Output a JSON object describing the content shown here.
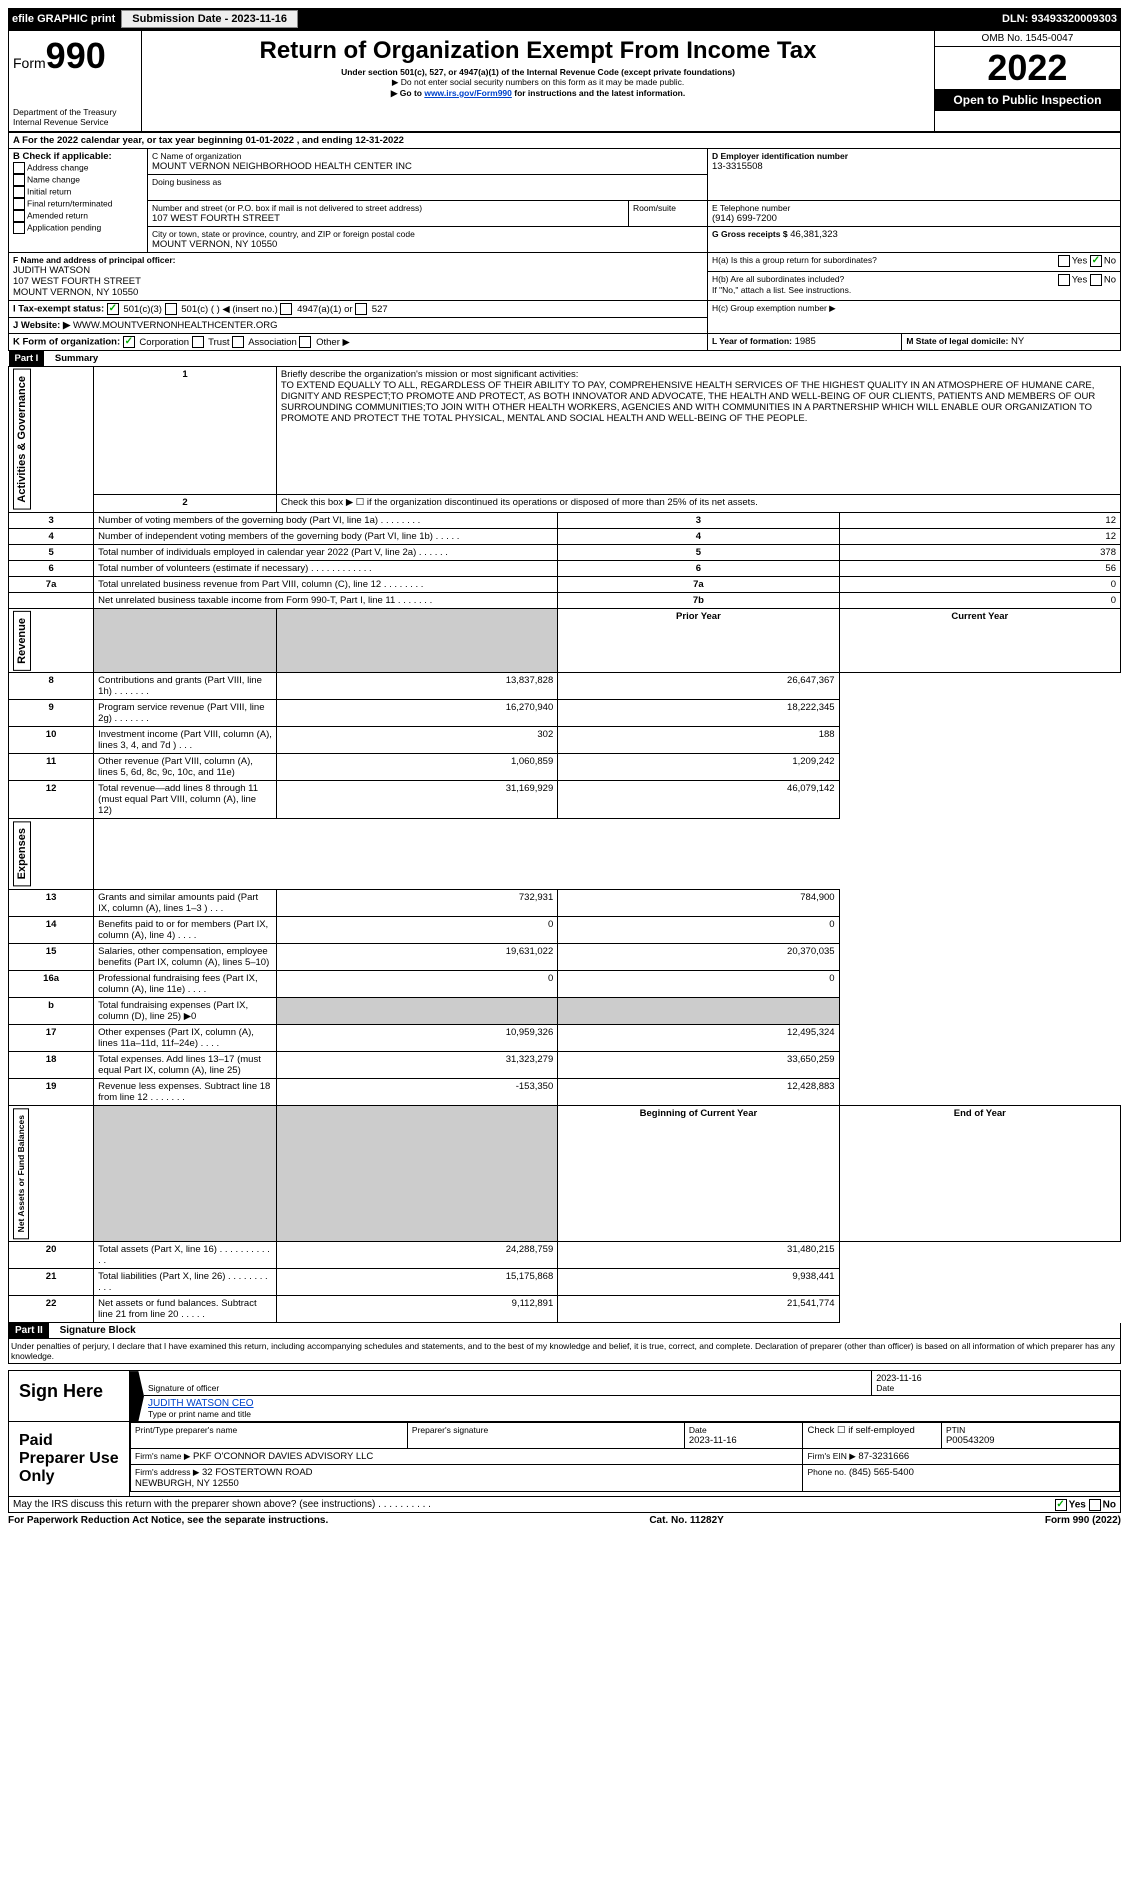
{
  "topbar": {
    "efile": "efile GRAPHIC print",
    "submission_btn": "Submission Date - 2023-11-16",
    "dln": "DLN: 93493320009303"
  },
  "header": {
    "form_prefix": "Form",
    "form_num": "990",
    "title": "Return of Organization Exempt From Income Tax",
    "subtitle": "Under section 501(c), 527, or 4947(a)(1) of the Internal Revenue Code (except private foundations)",
    "note1": "▶ Do not enter social security numbers on this form as it may be made public.",
    "note2_pre": "▶ Go to ",
    "note2_link": "www.irs.gov/Form990",
    "note2_post": " for instructions and the latest information.",
    "dept": "Department of the Treasury\nInternal Revenue Service",
    "omb": "OMB No. 1545-0047",
    "year": "2022",
    "open": "Open to Public Inspection"
  },
  "A": {
    "line": "A For the 2022 calendar year, or tax year beginning 01-01-2022  , and ending 12-31-2022"
  },
  "B": {
    "header": "B Check if applicable:",
    "opts": [
      "Address change",
      "Name change",
      "Initial return",
      "Final return/terminated",
      "Amended return",
      "Application pending"
    ]
  },
  "C": {
    "label": "C Name of organization",
    "name": "MOUNT VERNON NEIGHBORHOOD HEALTH CENTER INC",
    "dba_label": "Doing business as",
    "street_label": "Number and street (or P.O. box if mail is not delivered to street address)",
    "room_label": "Room/suite",
    "street": "107 WEST FOURTH STREET",
    "city_label": "City or town, state or province, country, and ZIP or foreign postal code",
    "city": "MOUNT VERNON, NY  10550"
  },
  "D": {
    "label": "D Employer identification number",
    "value": "13-3315508"
  },
  "E": {
    "label": "E Telephone number",
    "value": "(914) 699-7200"
  },
  "G": {
    "label": "G Gross receipts $",
    "value": "46,381,323"
  },
  "F": {
    "label": "F  Name and address of principal officer:",
    "name": "JUDITH WATSON",
    "addr1": "107 WEST FOURTH STREET",
    "addr2": "MOUNT VERNON, NY  10550"
  },
  "H": {
    "a": "H(a)  Is this a group return for subordinates?",
    "b": "H(b)  Are all subordinates included?",
    "b_note": "If \"No,\" attach a list. See instructions.",
    "c": "H(c)  Group exemption number ▶",
    "yes": "Yes",
    "no": "No"
  },
  "I": {
    "label": "I  Tax-exempt status:",
    "opts": [
      "501(c)(3)",
      "501(c) (  ) ◀ (insert no.)",
      "4947(a)(1) or",
      "527"
    ]
  },
  "J": {
    "label": "J  Website: ▶",
    "value": "WWW.MOUNTVERNONHEALTHCENTER.ORG"
  },
  "K": {
    "label": "K Form of organization:",
    "opts": [
      "Corporation",
      "Trust",
      "Association",
      "Other ▶"
    ]
  },
  "L": {
    "label": "L Year of formation:",
    "value": "1985"
  },
  "M": {
    "label": "M State of legal domicile:",
    "value": "NY"
  },
  "part1": {
    "label": "Part I",
    "title": "Summary",
    "line1_label": "Briefly describe the organization's mission or most significant activities:",
    "mission": "TO EXTEND EQUALLY TO ALL, REGARDLESS OF THEIR ABILITY TO PAY, COMPREHENSIVE HEALTH SERVICES OF THE HIGHEST QUALITY IN AN ATMOSPHERE OF HUMANE CARE, DIGNITY AND RESPECT;TO PROMOTE AND PROTECT, AS BOTH INNOVATOR AND ADVOCATE, THE HEALTH AND WELL-BEING OF OUR CLIENTS, PATIENTS AND MEMBERS OF OUR SURROUNDING COMMUNITIES;TO JOIN WITH OTHER HEALTH WORKERS, AGENCIES AND WITH COMMUNITIES IN A PARTNERSHIP WHICH WILL ENABLE OUR ORGANIZATION TO PROMOTE AND PROTECT THE TOTAL PHYSICAL, MENTAL AND SOCIAL HEALTH AND WELL-BEING OF THE PEOPLE.",
    "line2": "Check this box ▶ ☐ if the organization discontinued its operations or disposed of more than 25% of its net assets.",
    "vert_ag": "Activities & Governance",
    "vert_rev": "Revenue",
    "vert_exp": "Expenses",
    "vert_na": "Net Assets or Fund Balances",
    "rows_ag": [
      {
        "n": "3",
        "t": "Number of voting members of the governing body (Part VI, line 1a)  .   .   .   .   .   .   .   .",
        "c": "3",
        "v": "12"
      },
      {
        "n": "4",
        "t": "Number of independent voting members of the governing body (Part VI, line 1b)  .   .   .   .   .",
        "c": "4",
        "v": "12"
      },
      {
        "n": "5",
        "t": "Total number of individuals employed in calendar year 2022 (Part V, line 2a)  .   .   .   .   .   .",
        "c": "5",
        "v": "378"
      },
      {
        "n": "6",
        "t": "Total number of volunteers (estimate if necessary)  .   .   .   .   .   .   .   .   .   .   .   .",
        "c": "6",
        "v": "56"
      },
      {
        "n": "7a",
        "t": "Total unrelated business revenue from Part VIII, column (C), line 12  .   .   .   .   .   .   .   .",
        "c": "7a",
        "v": "0"
      },
      {
        "n": "",
        "t": "Net unrelated business taxable income from Form 990-T, Part I, line 11  .   .   .   .   .   .   .",
        "c": "7b",
        "v": "0"
      }
    ],
    "hdr_prior": "Prior Year",
    "hdr_curr": "Current Year",
    "rows_rev": [
      {
        "n": "8",
        "t": "Contributions and grants (Part VIII, line 1h)  .   .   .   .   .   .   .",
        "p": "13,837,828",
        "c": "26,647,367"
      },
      {
        "n": "9",
        "t": "Program service revenue (Part VIII, line 2g)  .   .   .   .   .   .   .",
        "p": "16,270,940",
        "c": "18,222,345"
      },
      {
        "n": "10",
        "t": "Investment income (Part VIII, column (A), lines 3, 4, and 7d )  .   .   .",
        "p": "302",
        "c": "188"
      },
      {
        "n": "11",
        "t": "Other revenue (Part VIII, column (A), lines 5, 6d, 8c, 9c, 10c, and 11e)",
        "p": "1,060,859",
        "c": "1,209,242"
      },
      {
        "n": "12",
        "t": "Total revenue—add lines 8 through 11 (must equal Part VIII, column (A), line 12)",
        "p": "31,169,929",
        "c": "46,079,142"
      }
    ],
    "rows_exp": [
      {
        "n": "13",
        "t": "Grants and similar amounts paid (Part IX, column (A), lines 1–3 )  .   .   .",
        "p": "732,931",
        "c": "784,900"
      },
      {
        "n": "14",
        "t": "Benefits paid to or for members (Part IX, column (A), line 4)  .   .   .   .",
        "p": "0",
        "c": "0"
      },
      {
        "n": "15",
        "t": "Salaries, other compensation, employee benefits (Part IX, column (A), lines 5–10)",
        "p": "19,631,022",
        "c": "20,370,035"
      },
      {
        "n": "16a",
        "t": "Professional fundraising fees (Part IX, column (A), line 11e)  .   .   .   .",
        "p": "0",
        "c": "0"
      },
      {
        "n": "b",
        "t": "Total fundraising expenses (Part IX, column (D), line 25) ▶0",
        "p": "",
        "c": "",
        "shaded": true
      },
      {
        "n": "17",
        "t": "Other expenses (Part IX, column (A), lines 11a–11d, 11f–24e)  .   .   .   .",
        "p": "10,959,326",
        "c": "12,495,324"
      },
      {
        "n": "18",
        "t": "Total expenses. Add lines 13–17 (must equal Part IX, column (A), line 25)",
        "p": "31,323,279",
        "c": "33,650,259"
      },
      {
        "n": "19",
        "t": "Revenue less expenses. Subtract line 18 from line 12  .   .   .   .   .   .   .",
        "p": "-153,350",
        "c": "12,428,883"
      }
    ],
    "hdr_boy": "Beginning of Current Year",
    "hdr_eoy": "End of Year",
    "rows_na": [
      {
        "n": "20",
        "t": "Total assets (Part X, line 16)  .   .   .   .   .   .   .   .   .   .   .   .",
        "p": "24,288,759",
        "c": "31,480,215"
      },
      {
        "n": "21",
        "t": "Total liabilities (Part X, line 26)  .   .   .   .   .   .   .   .   .   .   .",
        "p": "15,175,868",
        "c": "9,938,441"
      },
      {
        "n": "22",
        "t": "Net assets or fund balances. Subtract line 21 from line 20  .   .   .   .   .",
        "p": "9,112,891",
        "c": "21,541,774"
      }
    ]
  },
  "part2": {
    "label": "Part II",
    "title": "Signature Block",
    "perjury": "Under penalties of perjury, I declare that I have examined this return, including accompanying schedules and statements, and to the best of my knowledge and belief, it is true, correct, and complete. Declaration of preparer (other than officer) is based on all information of which preparer has any knowledge.",
    "sign_here": "Sign Here",
    "sig_officer": "Signature of officer",
    "sig_date": "2023-11-16",
    "date_label": "Date",
    "officer_name": "JUDITH WATSON CEO",
    "type_name": "Type or print name and title",
    "paid": "Paid Preparer Use Only",
    "prep_name_label": "Print/Type preparer's name",
    "prep_sig_label": "Preparer's signature",
    "prep_date": "2023-11-16",
    "check_self": "Check ☐ if self-employed",
    "ptin_label": "PTIN",
    "ptin": "P00543209",
    "firm_name_label": "Firm's name    ▶",
    "firm_name": "PKF O'CONNOR DAVIES ADVISORY LLC",
    "firm_ein_label": "Firm's EIN ▶",
    "firm_ein": "87-3231666",
    "firm_addr_label": "Firm's address ▶",
    "firm_addr": "32 FOSTERTOWN ROAD\nNEWBURGH, NY  12550",
    "firm_phone_label": "Phone no.",
    "firm_phone": "(845) 565-5400",
    "discuss": "May the IRS discuss this return with the preparer shown above? (see instructions)   .   .   .   .   .   .   .   .   .   .",
    "yes": "Yes",
    "no": "No"
  },
  "footer": {
    "left": "For Paperwork Reduction Act Notice, see the separate instructions.",
    "mid": "Cat. No. 11282Y",
    "right": "Form 990 (2022)"
  }
}
